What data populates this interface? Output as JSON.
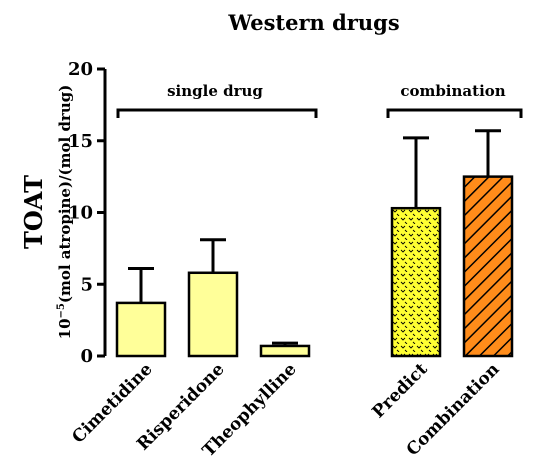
{
  "chart_data": {
    "type": "bar",
    "title": "Western drugs",
    "ylabel_main": "TOAT",
    "ylabel_unit_base": "10",
    "ylabel_unit_exp": "−5",
    "ylabel_unit_rest": "(mol atropine)/(mol drug)",
    "ylim": [
      0,
      20
    ],
    "yticks": [
      "0",
      "5",
      "10",
      "15",
      "20"
    ],
    "categories": [
      "Cimetidine",
      "Risperidone",
      "Theophylline",
      "Predict",
      "Combination"
    ],
    "values": [
      3.7,
      5.8,
      0.7,
      10.3,
      12.5
    ],
    "errors": [
      2.4,
      2.3,
      0.2,
      4.9,
      3.2
    ],
    "group_labels": [
      "single drug",
      "combination"
    ],
    "groups": [
      [
        0,
        1,
        2
      ],
      [
        3,
        4
      ]
    ],
    "fills": [
      "plain",
      "plain",
      "plain",
      "dotted",
      "hatched"
    ],
    "colors": {
      "single_fill": "#FFFF99",
      "predict_fill": "#FFFF33",
      "combination_fill": "#FF8C1A",
      "stroke": "#000000"
    },
    "grid": false,
    "legend": "none"
  }
}
